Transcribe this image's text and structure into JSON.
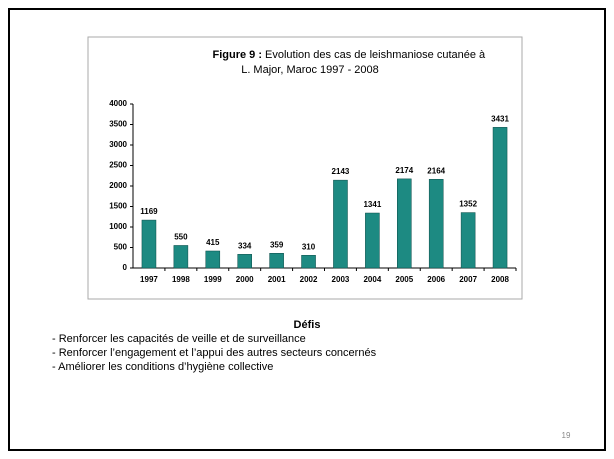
{
  "chart_data": {
    "type": "bar",
    "title_prefix": "Figure 9 :",
    "title": "Evolution des cas de leishmaniose  cutanée à",
    "subtitle": "L. Major, Maroc 1997 - 2008",
    "categories": [
      "1997",
      "1998",
      "1999",
      "2000",
      "2001",
      "2002",
      "2003",
      "2004",
      "2005",
      "2006",
      "2007",
      "2008"
    ],
    "values": [
      1169,
      550,
      415,
      334,
      359,
      310,
      2143,
      1341,
      2174,
      2164,
      1352,
      3431
    ],
    "color": "#1d8a82",
    "ylim": [
      0,
      4000
    ],
    "yticks": [
      0,
      500,
      1000,
      1500,
      2000,
      2500,
      3000,
      3500,
      4000
    ],
    "grid": false
  },
  "slide": {
    "heading": "Défis",
    "bullets": [
      "- Renforcer les capacités de veille et de surveillance",
      "- Renforcer l’engagement et l’appui des autres secteurs concernés",
      "- Améliorer les conditions d’hygiène collective"
    ],
    "page_number": "19"
  }
}
